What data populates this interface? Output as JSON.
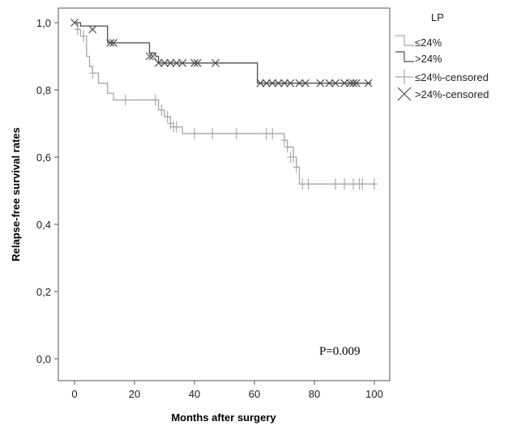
{
  "chart_data": {
    "type": "line",
    "subtype": "kaplan-meier",
    "xlabel": "Months after surgery",
    "ylabel": "Relapse-free survival rates",
    "xlim": [
      0,
      100
    ],
    "ylim": [
      0,
      1
    ],
    "xticks": [
      "0",
      "20",
      "40",
      "60",
      "80",
      "100"
    ],
    "yticks": [
      "0,0",
      "0,2",
      "0,4",
      "0,6",
      "0,8",
      "1,0"
    ],
    "grid": false,
    "legend": {
      "title": "LP",
      "placement": "right",
      "items": [
        "≤24%",
        ">24%",
        "≤24%-censored",
        ">24%-censored"
      ]
    },
    "annotation": "P=0.009",
    "colors": {
      "low": "#a6a6a6",
      "high": "#4d4d4d"
    },
    "series": [
      {
        "name": "≤24%",
        "steps": [
          [
            0,
            1.0
          ],
          [
            1,
            0.98
          ],
          [
            2,
            0.96
          ],
          [
            4,
            0.9
          ],
          [
            5,
            0.87
          ],
          [
            6,
            0.85
          ],
          [
            8,
            0.82
          ],
          [
            11,
            0.79
          ],
          [
            13,
            0.77
          ],
          [
            28,
            0.74
          ],
          [
            30,
            0.72
          ],
          [
            32,
            0.7
          ],
          [
            33,
            0.69
          ],
          [
            36,
            0.67
          ],
          [
            70,
            0.65
          ],
          [
            71,
            0.63
          ],
          [
            73,
            0.6
          ],
          [
            74,
            0.57
          ],
          [
            75,
            0.52
          ],
          [
            100,
            0.52
          ]
        ],
        "censored": [
          [
            1,
            0.98
          ],
          [
            3,
            0.96
          ],
          [
            6,
            0.85
          ],
          [
            17,
            0.77
          ],
          [
            27,
            0.77
          ],
          [
            29,
            0.74
          ],
          [
            31,
            0.72
          ],
          [
            32,
            0.7
          ],
          [
            33,
            0.69
          ],
          [
            34,
            0.69
          ],
          [
            40,
            0.67
          ],
          [
            46,
            0.67
          ],
          [
            54,
            0.67
          ],
          [
            64,
            0.67
          ],
          [
            66,
            0.67
          ],
          [
            70,
            0.65
          ],
          [
            71,
            0.63
          ],
          [
            72,
            0.6
          ],
          [
            73,
            0.6
          ],
          [
            74,
            0.57
          ],
          [
            76,
            0.52
          ],
          [
            78,
            0.52
          ],
          [
            87,
            0.52
          ],
          [
            90,
            0.52
          ],
          [
            93,
            0.52
          ],
          [
            95,
            0.52
          ],
          [
            96,
            0.52
          ],
          [
            100,
            0.52
          ]
        ]
      },
      {
        "name": ">24%",
        "steps": [
          [
            0,
            1.0
          ],
          [
            2,
            0.99
          ],
          [
            11,
            0.94
          ],
          [
            25,
            0.91
          ],
          [
            27,
            0.9
          ],
          [
            28,
            0.88
          ],
          [
            61,
            0.82
          ],
          [
            99,
            0.82
          ]
        ],
        "censored": [
          [
            0,
            1.0
          ],
          [
            6,
            0.98
          ],
          [
            12,
            0.94
          ],
          [
            13,
            0.94
          ],
          [
            25,
            0.9
          ],
          [
            26,
            0.9
          ],
          [
            28,
            0.88
          ],
          [
            30,
            0.88
          ],
          [
            32,
            0.88
          ],
          [
            34,
            0.88
          ],
          [
            36,
            0.88
          ],
          [
            40,
            0.88
          ],
          [
            41,
            0.88
          ],
          [
            47,
            0.88
          ],
          [
            62,
            0.82
          ],
          [
            64,
            0.82
          ],
          [
            66,
            0.82
          ],
          [
            68,
            0.82
          ],
          [
            70,
            0.82
          ],
          [
            72,
            0.82
          ],
          [
            75,
            0.82
          ],
          [
            77,
            0.82
          ],
          [
            82,
            0.82
          ],
          [
            85,
            0.82
          ],
          [
            87,
            0.82
          ],
          [
            90,
            0.82
          ],
          [
            92,
            0.82
          ],
          [
            93,
            0.82
          ],
          [
            94,
            0.82
          ],
          [
            98,
            0.82
          ]
        ]
      }
    ]
  }
}
